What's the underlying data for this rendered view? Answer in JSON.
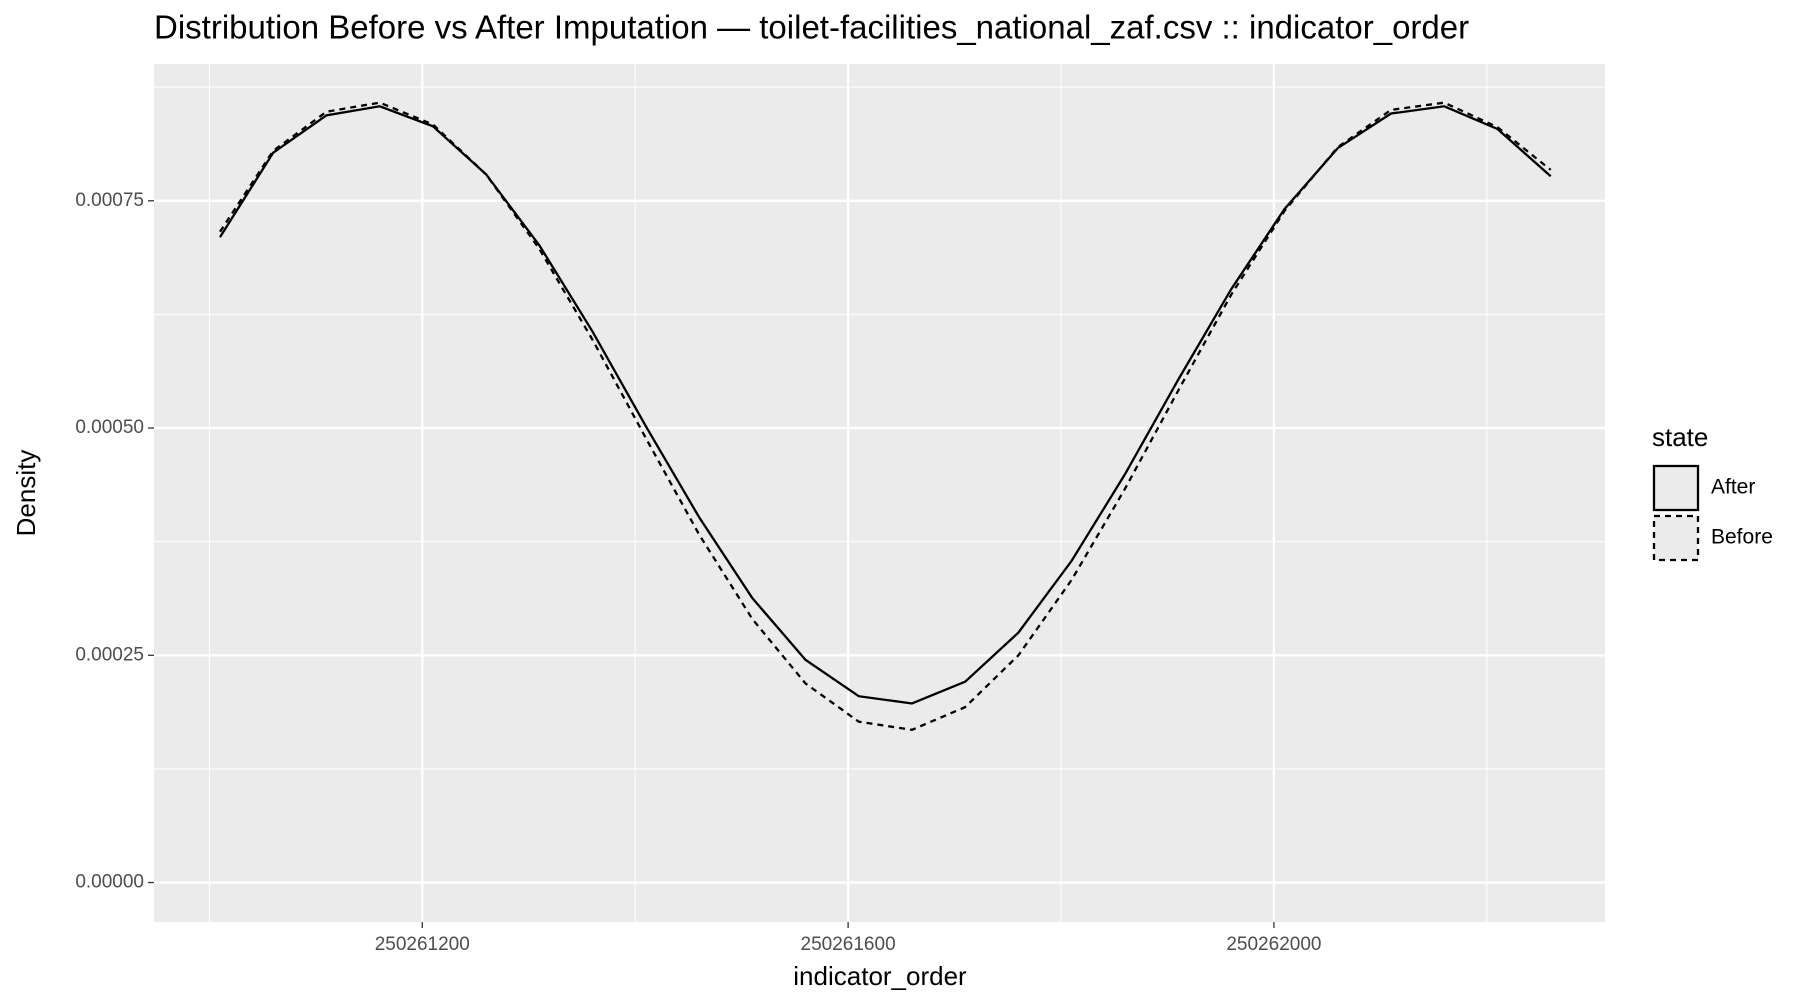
{
  "chart_data": {
    "type": "line",
    "title": "Distribution Before vs After Imputation — toilet-facilities_national_zaf.csv :: indicator_order",
    "xlabel": "indicator_order",
    "ylabel": "Density",
    "legend_title": "state",
    "legend_position": "right",
    "grid": true,
    "x": [
      250261010,
      250261060,
      250261110,
      250261160,
      250261210,
      250261260,
      250261310,
      250261360,
      250261410,
      250261460,
      250261510,
      250261560,
      250261610,
      250261660,
      250261710,
      250261760,
      250261810,
      250261860,
      250261910,
      250261960,
      250262010,
      250262060,
      250262110,
      250262160,
      250262210,
      250262260
    ],
    "series": [
      {
        "name": "After",
        "color": "#000000",
        "linetype": "solid",
        "values": [
          0.00071,
          0.000803,
          0.000844,
          0.000854,
          0.000832,
          0.000779,
          0.000701,
          0.000606,
          0.000502,
          0.000402,
          0.000313,
          0.000245,
          0.000205,
          0.000197,
          0.000221,
          0.000275,
          0.000354,
          0.000449,
          0.000553,
          0.000653,
          0.000741,
          0.000808,
          0.000846,
          0.000854,
          0.000829,
          0.000777
        ]
      },
      {
        "name": "Before",
        "color": "#000000",
        "linetype": "dashed",
        "values": [
          0.000716,
          0.000805,
          0.000848,
          0.000858,
          0.000834,
          0.000779,
          0.000697,
          0.000597,
          0.000489,
          0.000383,
          0.00029,
          0.000219,
          0.000177,
          0.000168,
          0.000193,
          0.00025,
          0.000333,
          0.000433,
          0.000541,
          0.000647,
          0.000739,
          0.000809,
          0.00085,
          0.000858,
          0.000831,
          0.000784
        ]
      }
    ],
    "xlim": [
      250260948,
      250262311
    ],
    "xticks": [
      250261200,
      250261600,
      250262000
    ],
    "ylim": [
      -4.34e-05,
      0.0009005
    ],
    "yticks": [
      {
        "value": 0,
        "label": "0.00000"
      },
      {
        "value": 0.00025,
        "label": "0.00025"
      },
      {
        "value": 0.0005,
        "label": "0.00050"
      },
      {
        "value": 0.00075,
        "label": "0.00075"
      }
    ]
  }
}
